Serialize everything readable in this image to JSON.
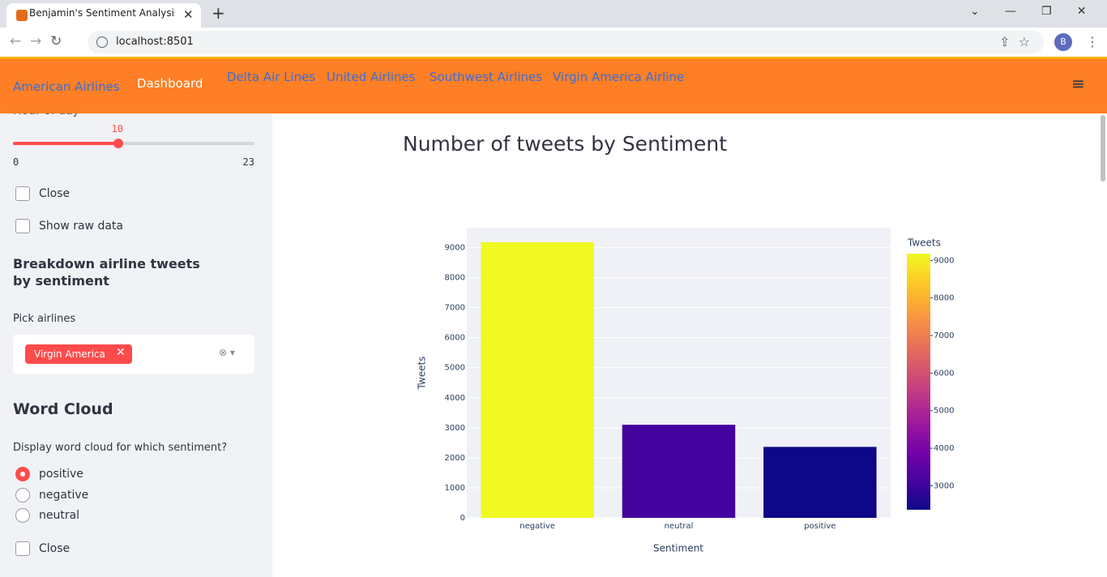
{
  "browser": {
    "tab_title": "Benjamin's Sentiment Analysis Pr",
    "url": "localhost:8501",
    "avatar": "B"
  },
  "nav": {
    "items": [
      "American Airlines",
      "Dashboard",
      "Delta Air Lines",
      "United Airlines",
      "Southwest Airlines",
      "Virgin America Airline"
    ],
    "active_index": 1
  },
  "sidebar": {
    "slider": {
      "label": "Hour of day",
      "value": 10,
      "min": 0,
      "max": 23
    },
    "checkboxes": [
      "Close",
      "Show raw data"
    ],
    "breakdown_heading": "Breakdown airline tweets by sentiment",
    "pick_label": "Pick airlines",
    "picked": [
      "Virgin America"
    ],
    "word_cloud_heading": "Word Cloud",
    "word_cloud_question": "Display word cloud for which sentiment?",
    "radio_options": [
      "positive",
      "negative",
      "neutral"
    ],
    "radio_selected_index": 0,
    "word_cloud_checkbox": "Close"
  },
  "chart_data": {
    "type": "bar",
    "title": "Number of tweets by Sentiment",
    "categories": [
      "negative",
      "neutral",
      "positive"
    ],
    "values": [
      9178,
      3099,
      2363
    ],
    "xlabel": "Sentiment",
    "ylabel": "Tweets",
    "ylim": [
      0,
      9661
    ],
    "yticks": [
      0,
      1000,
      2000,
      3000,
      4000,
      5000,
      6000,
      7000,
      8000,
      9000
    ],
    "grid": true,
    "colorbar": {
      "title": "Tweets",
      "clim": [
        2363,
        9178
      ],
      "ticks": [
        3000,
        4000,
        5000,
        6000,
        7000,
        8000,
        9000
      ],
      "colorscale": [
        "#0d0887",
        "#46039f",
        "#7201a8",
        "#9c179e",
        "#bd3786",
        "#d8576b",
        "#ed7953",
        "#fb9f3a",
        "#fdca26",
        "#f0f921"
      ]
    }
  }
}
